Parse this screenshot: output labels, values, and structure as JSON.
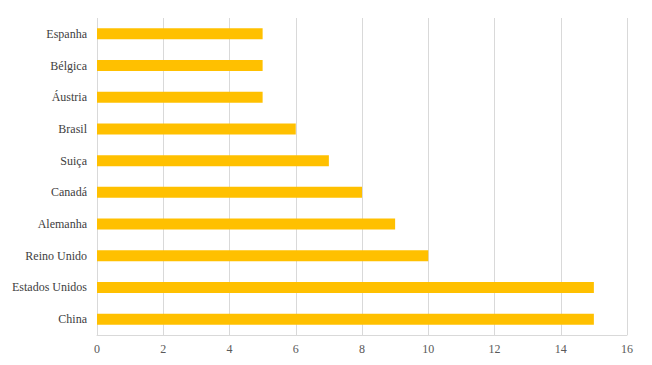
{
  "chart_data": {
    "type": "bar",
    "orientation": "horizontal",
    "categories": [
      "China",
      "Estados Unidos",
      "Reino Unido",
      "Alemanha",
      "Canadá",
      "Suiça",
      "Brasil",
      "Áustria",
      "Bélgica",
      "Espanha"
    ],
    "values": [
      15,
      15,
      10,
      9,
      8,
      7,
      6,
      5,
      5,
      5
    ],
    "color": "#ffc000",
    "xlim": [
      0,
      16
    ],
    "xticks": [
      0,
      2,
      4,
      6,
      8,
      10,
      12,
      14,
      16
    ],
    "grid": true
  }
}
